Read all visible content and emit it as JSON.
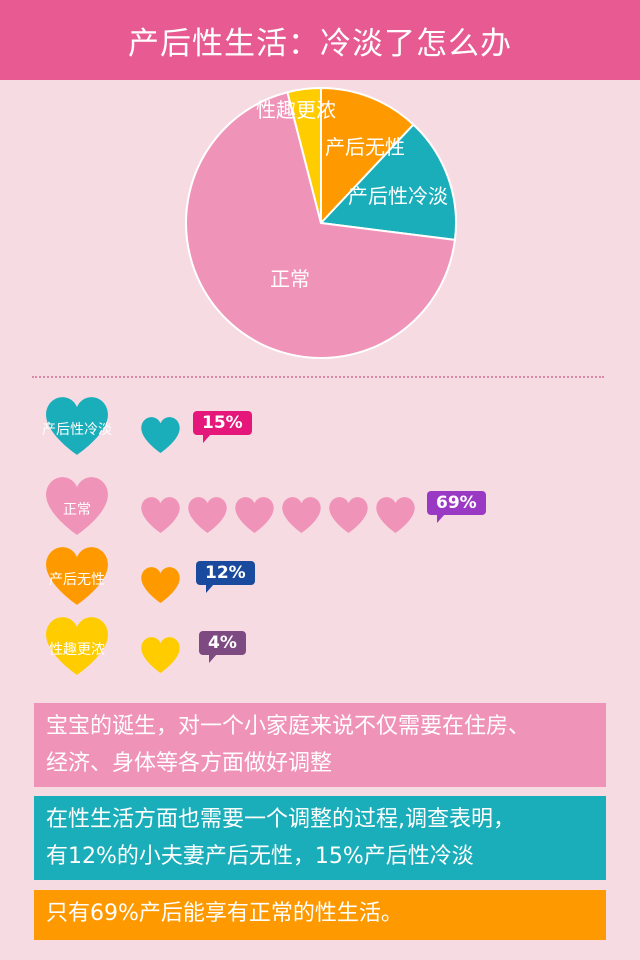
{
  "header": {
    "title": "产后性生活：冷淡了怎么办"
  },
  "chart_data": {
    "type": "pie",
    "slices": [
      {
        "label": "产后无性",
        "value": 12,
        "color": "#ff9900"
      },
      {
        "label": "产后性冷淡",
        "value": 15,
        "color": "#1aadba"
      },
      {
        "label": "正常",
        "value": 69,
        "color": "#f093b8"
      },
      {
        "label": "性趣更浓",
        "value": 4,
        "color": "#ffcc00"
      }
    ]
  },
  "stats": [
    {
      "label": "产后性冷淡",
      "count": 1,
      "percent": "15%",
      "color": "#1aadba",
      "bubble_color": "#e5177b"
    },
    {
      "label": "正常",
      "count": 6,
      "percent": "69%",
      "color": "#f093b8",
      "bubble_color": "#9a39c4"
    },
    {
      "label": "产后无性",
      "count": 1,
      "percent": "12%",
      "color": "#ff9900",
      "bubble_color": "#1a4a9e"
    },
    {
      "label": "性趣更浓",
      "count": 1,
      "percent": "4%",
      "color": "#ffcc00",
      "bubble_color": "#7d4a82"
    }
  ],
  "boxes": [
    {
      "text_lines": [
        "宝宝的诞生，对一个小家庭来说不仅需要在住房、",
        "经济、身体等各方面做好调整"
      ],
      "color": "#f093b8"
    },
    {
      "text_lines": [
        "在性生活方面也需要一个调整的过程,调查表明，",
        "有12%的小夫妻产后无性，15%产后性冷淡"
      ],
      "color": "#1aadba"
    },
    {
      "text_lines": [
        "只有69%产后能享有正常的性生活。"
      ],
      "color": "#ff9900"
    }
  ]
}
